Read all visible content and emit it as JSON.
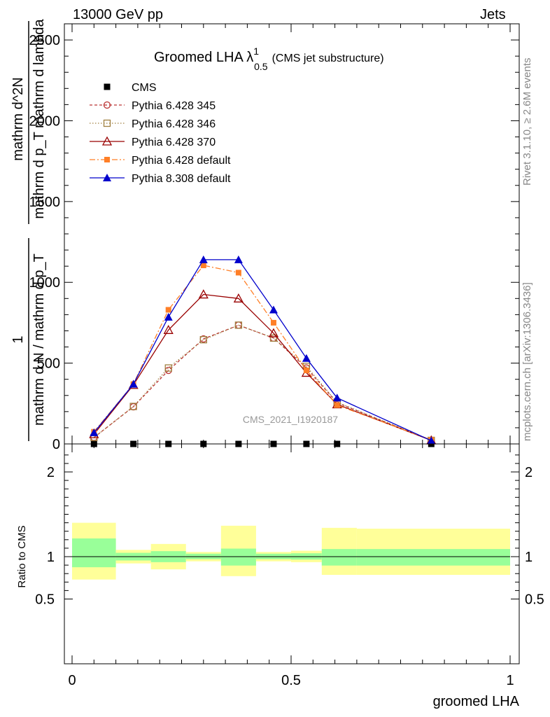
{
  "header": {
    "left": "13000 GeV pp",
    "right": "Jets"
  },
  "side_notes": {
    "rivet": "Rivet 3.1.10, ≥ 2.6M events",
    "mcplots": "mcplots.cern.ch [arXiv:1306.3436]"
  },
  "chart_data": [
    {
      "type": "line",
      "title": "Groomed LHA",
      "title_symbol": "λ",
      "title_sup": "1",
      "title_sub": "0.5",
      "subtitle": "(CMS jet substructure)",
      "watermark": "CMS_2021_I1920187",
      "ylabel_numerator": "1",
      "ylabel_denominator": "mathrm d N / mathrm d p_T",
      "ylabel_right_numerator": "mathrm d^2N",
      "ylabel_right_denominator": "mathrm d p_T mathrm d lambda",
      "xlim": [
        0,
        1
      ],
      "ylim": [
        0,
        2600
      ],
      "yticks": [
        0,
        500,
        1000,
        1500,
        2000,
        2500
      ],
      "ytick_labels": [
        "0",
        "500",
        "1000",
        "1500",
        "2000",
        "2500"
      ],
      "series": [
        {
          "name": "CMS",
          "style": "data",
          "color": "#000000",
          "x": [
            0.05,
            0.14,
            0.22,
            0.3,
            0.38,
            0.46,
            0.535,
            0.605,
            0.82
          ],
          "y": [
            0,
            0,
            0,
            0,
            0,
            0,
            0,
            0,
            0
          ]
        },
        {
          "name": "Pythia 6.428 345",
          "style": "dashed-circle",
          "color": "#bb3333",
          "x": [
            0.05,
            0.14,
            0.22,
            0.3,
            0.38,
            0.46,
            0.535,
            0.605,
            0.82
          ],
          "y": [
            40,
            230,
            455,
            650,
            735,
            655,
            470,
            255,
            22
          ]
        },
        {
          "name": "Pythia 6.428 346",
          "style": "dotted-square",
          "color": "#a08040",
          "x": [
            0.05,
            0.14,
            0.22,
            0.3,
            0.38,
            0.46,
            0.535,
            0.605,
            0.82
          ],
          "y": [
            40,
            232,
            470,
            645,
            735,
            655,
            480,
            258,
            22
          ]
        },
        {
          "name": "Pythia 6.428 370",
          "style": "solid-open-triangle",
          "color": "#990000",
          "x": [
            0.05,
            0.14,
            0.22,
            0.3,
            0.38,
            0.46,
            0.535,
            0.605,
            0.82
          ],
          "y": [
            60,
            365,
            705,
            925,
            900,
            685,
            440,
            245,
            22
          ]
        },
        {
          "name": "Pythia 6.428 default",
          "style": "dashdot-filled-square",
          "color": "#ff7f27",
          "x": [
            0.05,
            0.14,
            0.22,
            0.3,
            0.38,
            0.46,
            0.535,
            0.605,
            0.82
          ],
          "y": [
            75,
            370,
            830,
            1105,
            1060,
            750,
            455,
            240,
            25
          ]
        },
        {
          "name": "Pythia 8.308 default",
          "style": "solid-filled-triangle",
          "color": "#0000cc",
          "x": [
            0.05,
            0.14,
            0.22,
            0.3,
            0.38,
            0.46,
            0.535,
            0.605,
            0.82
          ],
          "y": [
            70,
            370,
            785,
            1140,
            1140,
            830,
            530,
            285,
            20
          ]
        }
      ]
    },
    {
      "type": "area",
      "ylabel": "Ratio to CMS",
      "xlabel": "groomed LHA",
      "xlim": [
        0,
        1
      ],
      "ylim": [
        0.25,
        2.3
      ],
      "xticks": [
        0,
        0.5,
        1
      ],
      "xtick_labels": [
        "0",
        "0.5",
        "1"
      ],
      "yticks": [
        0.5,
        1,
        2
      ],
      "ytick_labels": [
        "0.5",
        "1",
        "2"
      ],
      "bin_edges": [
        0,
        0.1,
        0.18,
        0.26,
        0.34,
        0.42,
        0.5,
        0.57,
        0.65,
        1.0
      ],
      "band_colors": {
        "inner": "#99ff99",
        "outer": "#ffff99"
      },
      "inner_band": [
        [
          0.875,
          1.215
        ],
        [
          0.955,
          1.045
        ],
        [
          0.935,
          1.065
        ],
        [
          0.97,
          1.035
        ],
        [
          0.895,
          1.095
        ],
        [
          0.97,
          1.035
        ],
        [
          0.965,
          1.04
        ],
        [
          0.895,
          1.09
        ],
        [
          0.895,
          1.09
        ]
      ],
      "outer_band": [
        [
          0.73,
          1.4
        ],
        [
          0.92,
          1.08
        ],
        [
          0.85,
          1.15
        ],
        [
          0.945,
          1.055
        ],
        [
          0.77,
          1.365
        ],
        [
          0.945,
          1.055
        ],
        [
          0.935,
          1.07
        ],
        [
          0.785,
          1.34
        ],
        [
          0.785,
          1.33
        ]
      ]
    }
  ]
}
